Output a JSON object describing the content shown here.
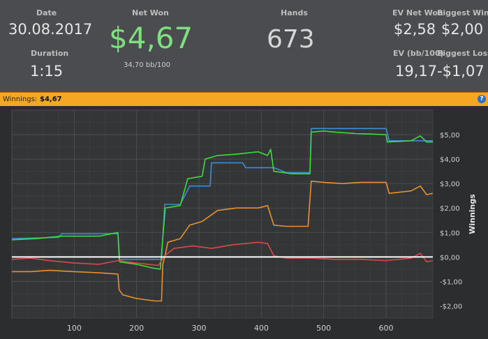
{
  "stats": {
    "date_label": "Date",
    "date_value": "30.08.2017",
    "duration_label": "Duration",
    "duration_value": "1:15",
    "net_won_label": "Net Won",
    "net_won_value": "$4,67",
    "net_won_bb": "34,70 bb/100",
    "hands_label": "Hands",
    "hands_value": "673",
    "ev_net_won_label": "EV Net Won",
    "ev_net_won_value": "$2,58",
    "biggest_win_label": "Biggest Win",
    "biggest_win_value": "$2,00",
    "ev_bb_label": "EV (bb/100)",
    "ev_bb_value": "19,17",
    "biggest_loss_label": "Biggest Loss",
    "biggest_loss_value": "-$1,07"
  },
  "winnings_bar": {
    "label": "Winnings:",
    "value": "$4,67",
    "help_glyph": "?"
  },
  "colors": {
    "net_won": "#7ee07e",
    "green": "#3ddc3d",
    "blue": "#3a8fd8",
    "orange": "#e8922f",
    "red": "#d84a4a",
    "zero_line": "#ffffff"
  },
  "chart_data": {
    "type": "line",
    "ylabel": "Winnings",
    "xlim": [
      0,
      675
    ],
    "ylim": [
      -2.5,
      6
    ],
    "xticks": [
      100,
      200,
      300,
      400,
      500,
      600
    ],
    "xtick_labels": [
      "100",
      "200",
      "300",
      "400",
      "500",
      "600"
    ],
    "yticks": [
      -2,
      -1,
      0,
      1,
      2,
      3,
      4,
      5
    ],
    "ytick_labels": [
      "-$2,00",
      "-$1,00",
      "$0,00",
      "$1,00",
      "$2,00",
      "$3,00",
      "$4,00",
      "$5,00"
    ],
    "grid": true,
    "series": [
      {
        "color": "#3a8fd8",
        "points": [
          [
            0,
            0.75
          ],
          [
            75,
            0.8
          ],
          [
            80,
            0.95
          ],
          [
            140,
            0.95
          ],
          [
            170,
            0.95
          ],
          [
            172,
            -0.1
          ],
          [
            240,
            -0.1
          ],
          [
            245,
            2.15
          ],
          [
            270,
            2.15
          ],
          [
            285,
            2.9
          ],
          [
            318,
            2.9
          ],
          [
            320,
            3.85
          ],
          [
            370,
            3.85
          ],
          [
            375,
            3.65
          ],
          [
            420,
            3.65
          ],
          [
            440,
            3.45
          ],
          [
            478,
            3.45
          ],
          [
            480,
            5.25
          ],
          [
            600,
            5.25
          ],
          [
            605,
            4.75
          ],
          [
            660,
            4.75
          ],
          [
            675,
            4.75
          ]
        ]
      },
      {
        "color": "#3ddc3d",
        "points": [
          [
            0,
            0.7
          ],
          [
            40,
            0.75
          ],
          [
            80,
            0.85
          ],
          [
            140,
            0.85
          ],
          [
            170,
            1.0
          ],
          [
            173,
            -0.2
          ],
          [
            200,
            -0.3
          ],
          [
            225,
            -0.45
          ],
          [
            238,
            -0.5
          ],
          [
            243,
            1.1
          ],
          [
            246,
            2.0
          ],
          [
            270,
            2.1
          ],
          [
            282,
            3.2
          ],
          [
            305,
            3.3
          ],
          [
            310,
            4.0
          ],
          [
            330,
            4.15
          ],
          [
            360,
            4.2
          ],
          [
            395,
            4.3
          ],
          [
            410,
            4.15
          ],
          [
            415,
            4.4
          ],
          [
            420,
            3.5
          ],
          [
            450,
            3.4
          ],
          [
            478,
            3.4
          ],
          [
            480,
            5.1
          ],
          [
            500,
            5.15
          ],
          [
            520,
            5.1
          ],
          [
            550,
            5.05
          ],
          [
            600,
            5.0
          ],
          [
            602,
            4.7
          ],
          [
            640,
            4.75
          ],
          [
            655,
            4.95
          ],
          [
            665,
            4.7
          ],
          [
            675,
            4.7
          ]
        ]
      },
      {
        "color": "#e8922f",
        "points": [
          [
            0,
            -0.6
          ],
          [
            30,
            -0.6
          ],
          [
            60,
            -0.55
          ],
          [
            100,
            -0.6
          ],
          [
            140,
            -0.65
          ],
          [
            170,
            -0.7
          ],
          [
            172,
            -1.35
          ],
          [
            178,
            -1.55
          ],
          [
            200,
            -1.7
          ],
          [
            230,
            -1.8
          ],
          [
            240,
            -1.8
          ],
          [
            242,
            -0.3
          ],
          [
            246,
            0.1
          ],
          [
            250,
            0.6
          ],
          [
            270,
            0.75
          ],
          [
            285,
            1.3
          ],
          [
            305,
            1.45
          ],
          [
            330,
            1.9
          ],
          [
            360,
            2.0
          ],
          [
            395,
            2.0
          ],
          [
            410,
            2.1
          ],
          [
            420,
            1.3
          ],
          [
            440,
            1.25
          ],
          [
            475,
            1.25
          ],
          [
            480,
            3.1
          ],
          [
            500,
            3.05
          ],
          [
            530,
            3.0
          ],
          [
            560,
            3.05
          ],
          [
            600,
            3.05
          ],
          [
            605,
            2.6
          ],
          [
            640,
            2.7
          ],
          [
            655,
            2.9
          ],
          [
            665,
            2.55
          ],
          [
            675,
            2.6
          ]
        ]
      },
      {
        "color": "#d84a4a",
        "points": [
          [
            0,
            -0.1
          ],
          [
            30,
            -0.05
          ],
          [
            60,
            -0.15
          ],
          [
            100,
            -0.25
          ],
          [
            140,
            -0.3
          ],
          [
            170,
            -0.15
          ],
          [
            200,
            -0.25
          ],
          [
            235,
            -0.35
          ],
          [
            245,
            0.05
          ],
          [
            260,
            0.35
          ],
          [
            290,
            0.45
          ],
          [
            320,
            0.35
          ],
          [
            355,
            0.5
          ],
          [
            395,
            0.6
          ],
          [
            410,
            0.55
          ],
          [
            420,
            0.05
          ],
          [
            440,
            -0.05
          ],
          [
            480,
            -0.05
          ],
          [
            520,
            -0.1
          ],
          [
            560,
            -0.1
          ],
          [
            600,
            -0.15
          ],
          [
            640,
            -0.05
          ],
          [
            655,
            0.15
          ],
          [
            665,
            -0.2
          ],
          [
            675,
            -0.15
          ]
        ]
      }
    ]
  }
}
